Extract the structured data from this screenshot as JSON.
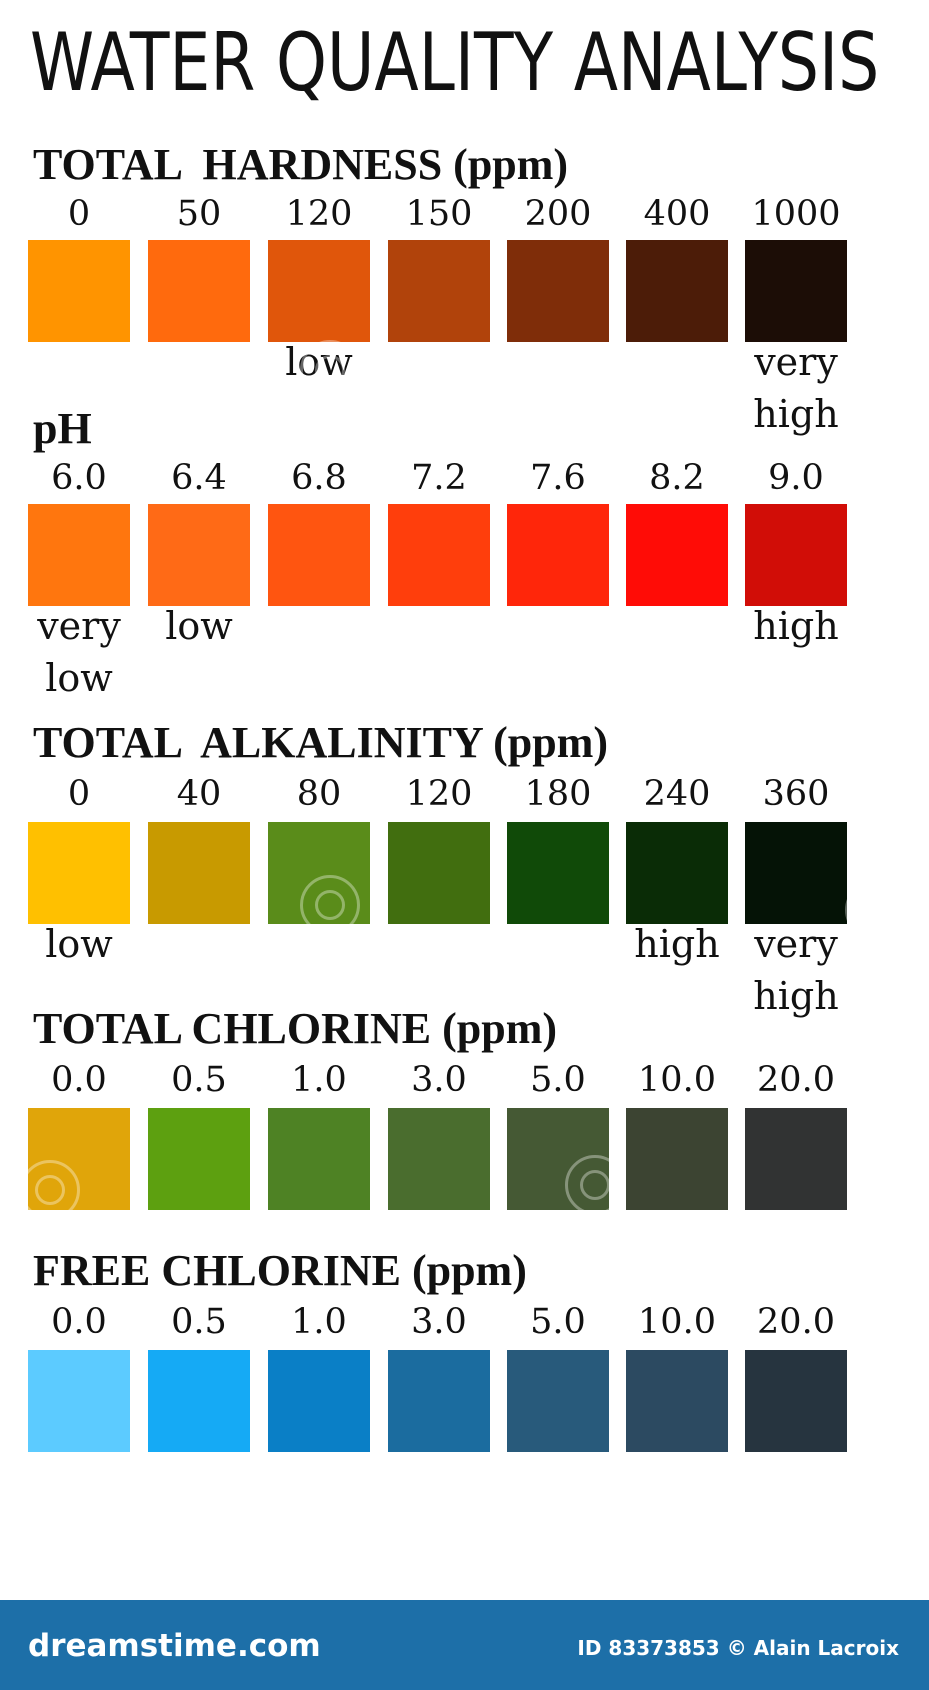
{
  "title": "WATER QUALITY ANALYSIS",
  "sections": [
    {
      "title": "TOTAL  HARDNESS (ppm)",
      "values": [
        "0",
        "50",
        "120",
        "150",
        "200",
        "400",
        "1000"
      ],
      "colors": [
        "#ff9400",
        "#ff6a0d",
        "#e0560b",
        "#b1430b",
        "#7f2d09",
        "#4c1c08",
        "#1c0d06"
      ],
      "labels": [
        {
          "index": 2,
          "text": "low"
        },
        {
          "index": 6,
          "text": "very\nhigh"
        }
      ]
    },
    {
      "title": "pH",
      "values": [
        "6.0",
        "6.4",
        "6.8",
        "7.2",
        "7.6",
        "8.2",
        "9.0"
      ],
      "colors": [
        "#ff760e",
        "#ff6a16",
        "#ff5510",
        "#ff3e0c",
        "#ff260a",
        "#ff0c06",
        "#d10d07"
      ],
      "labels": [
        {
          "index": 0,
          "text": "very\nlow"
        },
        {
          "index": 1,
          "text": "low"
        },
        {
          "index": 6,
          "text": "high"
        }
      ]
    },
    {
      "title": "TOTAL  ALKALINITY (ppm)",
      "values": [
        "0",
        "40",
        "80",
        "120",
        "180",
        "240",
        "360"
      ],
      "colors": [
        "#ffc000",
        "#c89a00",
        "#5a8c1a",
        "#416e0f",
        "#104a08",
        "#0a2c06",
        "#051306"
      ],
      "labels": [
        {
          "index": 0,
          "text": "low"
        },
        {
          "index": 5,
          "text": "high"
        },
        {
          "index": 6,
          "text": "very\nhigh"
        }
      ]
    },
    {
      "title": "TOTAL CHLORINE (ppm)",
      "values": [
        "0.0",
        "0.5",
        "1.0",
        "3.0",
        "5.0",
        "10.0",
        "20.0"
      ],
      "colors": [
        "#e0a50a",
        "#5da010",
        "#4e8224",
        "#4a6d2e",
        "#455934",
        "#3c4432",
        "#313333"
      ],
      "labels": []
    },
    {
      "title": "FREE CHLORINE (ppm)",
      "values": [
        "0.0",
        "0.5",
        "1.0",
        "3.0",
        "5.0",
        "10.0",
        "20.0"
      ],
      "colors": [
        "#5ccbff",
        "#15aaf5",
        "#0a7fc6",
        "#1b6c9f",
        "#285a7b",
        "#2c4a61",
        "#26343f"
      ],
      "labels": []
    }
  ],
  "footer": {
    "brand": "dreamstime.com",
    "credit": "ID 83373853 © Alain Lacroix"
  }
}
